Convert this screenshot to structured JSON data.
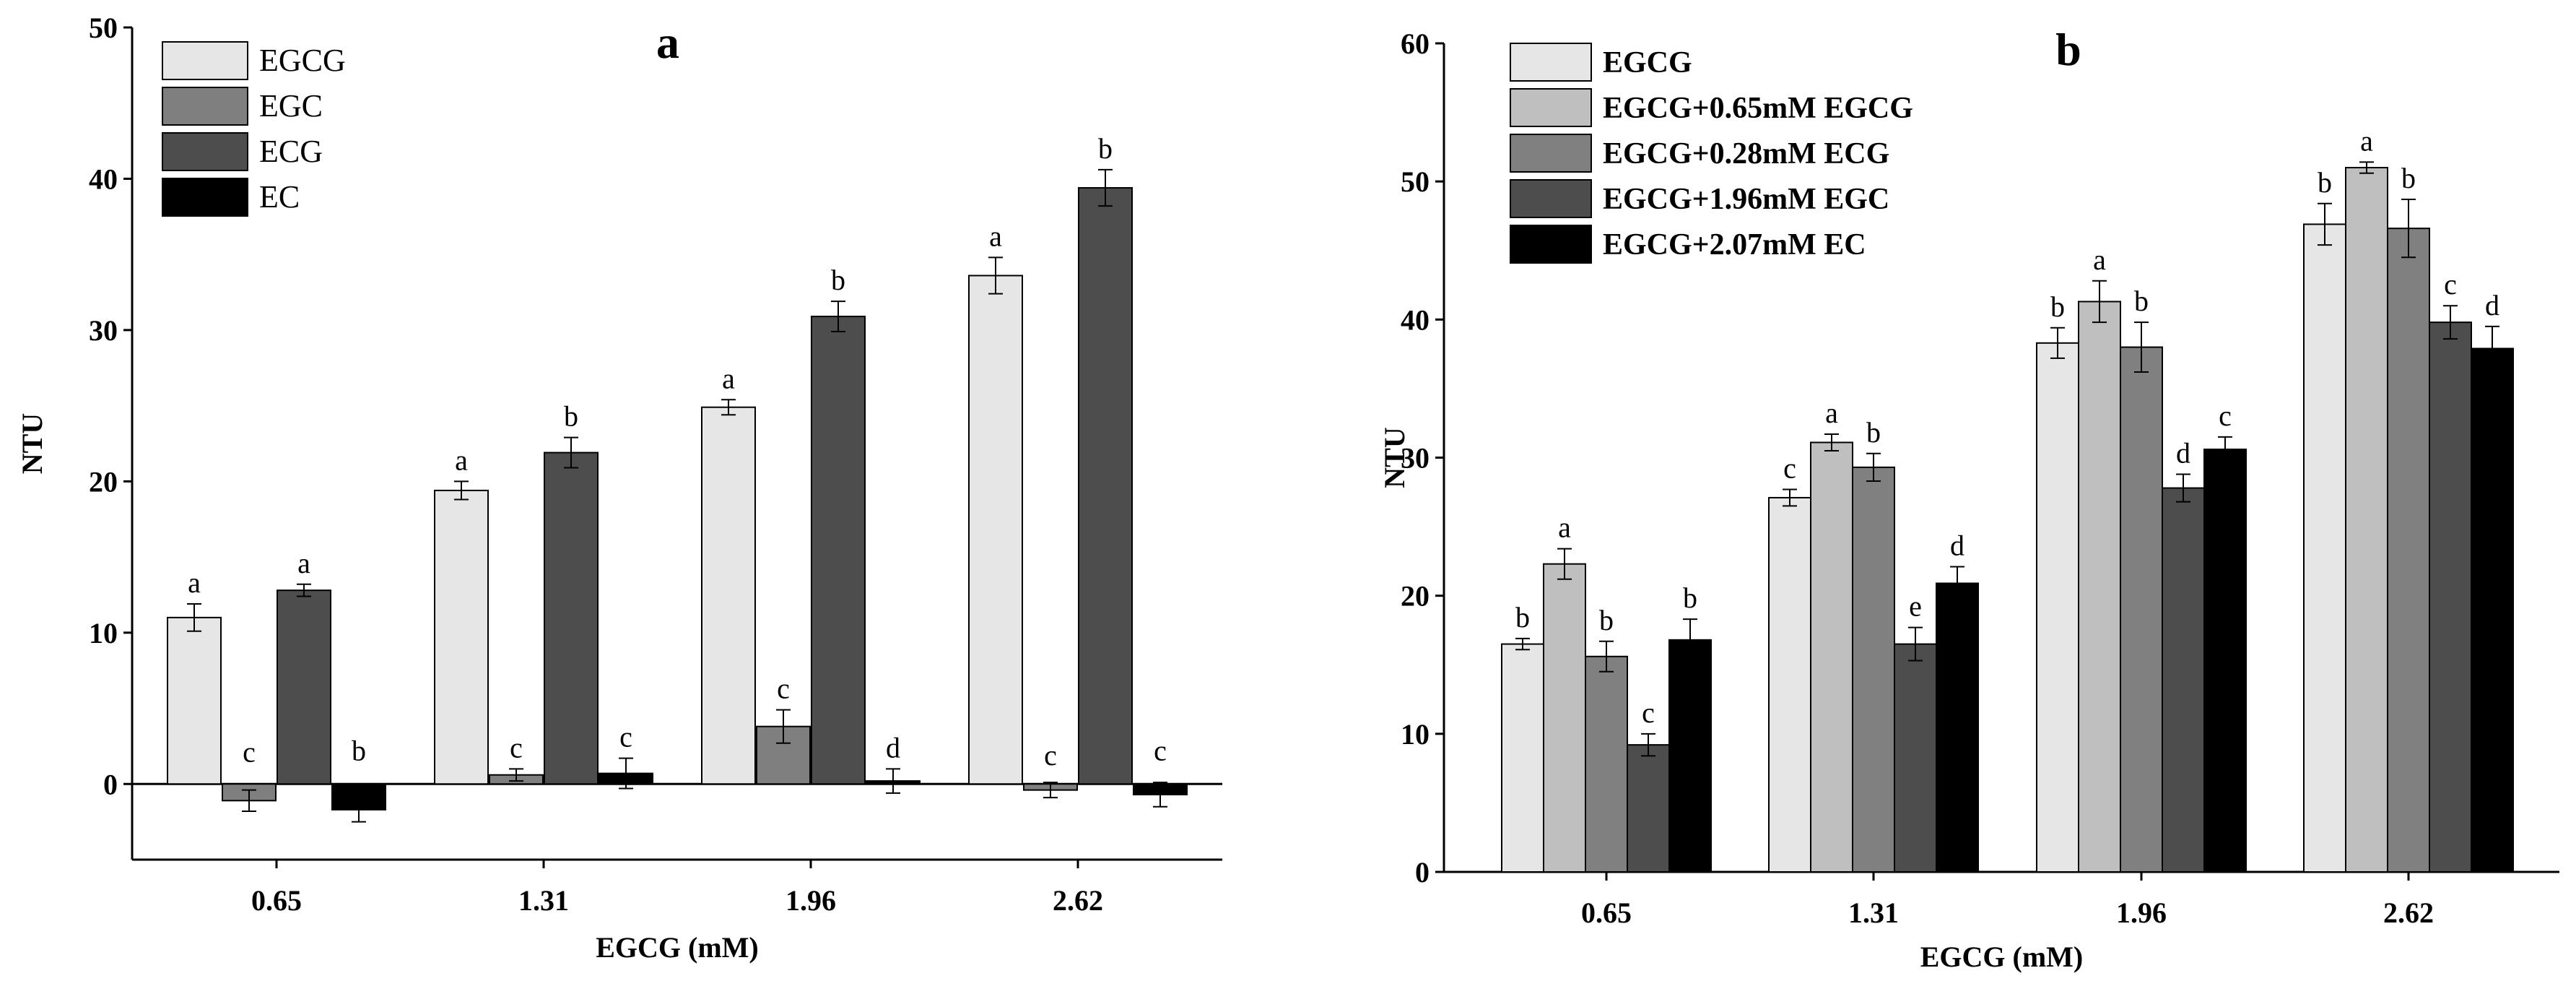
{
  "chart_data": [
    {
      "type": "bar",
      "title": "a",
      "xlabel": "EGCG (mM)",
      "ylabel": "NTU",
      "categories": [
        "0.65",
        "1.31",
        "1.96",
        "2.62"
      ],
      "ylim": [
        -5,
        50
      ],
      "yticks": [
        0,
        10,
        20,
        30,
        40,
        50
      ],
      "legend": "top-left",
      "series": [
        {
          "name": "EGCG",
          "color": "#e6e6e6",
          "values": [
            11.0,
            19.4,
            24.9,
            33.6
          ],
          "errors": [
            0.9,
            0.6,
            0.5,
            1.2
          ],
          "labels": [
            "a",
            "a",
            "a",
            "a"
          ]
        },
        {
          "name": "EGC",
          "color": "#7f7f7f",
          "values": [
            -1.1,
            0.6,
            3.8,
            -0.4
          ],
          "errors": [
            0.7,
            0.4,
            1.1,
            0.5
          ],
          "labels": [
            "c",
            "c",
            "c",
            "c"
          ]
        },
        {
          "name": "ECG",
          "color": "#4d4d4d",
          "values": [
            12.8,
            21.9,
            30.9,
            39.4
          ],
          "errors": [
            0.4,
            1.0,
            1.0,
            1.2
          ],
          "labels": [
            "a",
            "b",
            "b",
            "b"
          ]
        },
        {
          "name": "EC",
          "color": "#000000",
          "values": [
            -1.7,
            0.7,
            0.2,
            -0.7
          ],
          "errors": [
            0.8,
            1.0,
            0.8,
            0.8
          ],
          "labels": [
            "b",
            "c",
            "d",
            "c"
          ]
        }
      ]
    },
    {
      "type": "bar",
      "title": "b",
      "xlabel": "EGCG (mM)",
      "ylabel": "NTU",
      "categories": [
        "0.65",
        "1.31",
        "1.96",
        "2.62"
      ],
      "ylim": [
        0,
        60
      ],
      "yticks": [
        0,
        10,
        20,
        30,
        40,
        50,
        60
      ],
      "legend": "top-left",
      "series": [
        {
          "name": "EGCG",
          "color": "#e6e6e6",
          "values": [
            16.5,
            27.1,
            38.3,
            46.9
          ],
          "errors": [
            0.4,
            0.6,
            1.1,
            1.5
          ],
          "labels": [
            "b",
            "c",
            "b",
            "b"
          ]
        },
        {
          "name": "EGCG+0.65mM EGCG",
          "color": "#bfbfbf",
          "values": [
            22.3,
            31.1,
            41.3,
            51.0
          ],
          "errors": [
            1.1,
            0.6,
            1.5,
            0.4
          ],
          "labels": [
            "a",
            "a",
            "a",
            "a"
          ]
        },
        {
          "name": "EGCG+0.28mM ECG",
          "color": "#808080",
          "values": [
            15.6,
            29.3,
            38.0,
            46.6
          ],
          "errors": [
            1.1,
            1.0,
            1.8,
            2.1
          ],
          "labels": [
            "b",
            "b",
            "b",
            "b"
          ]
        },
        {
          "name": "EGCG+1.96mM EGC",
          "color": "#4d4d4d",
          "values": [
            9.2,
            16.5,
            27.8,
            39.8
          ],
          "errors": [
            0.8,
            1.2,
            1.0,
            1.2
          ],
          "labels": [
            "c",
            "e",
            "d",
            "c"
          ]
        },
        {
          "name": "EGCG+2.07mM EC",
          "color": "#000000",
          "values": [
            16.8,
            20.9,
            30.6,
            37.9
          ],
          "errors": [
            1.5,
            1.2,
            0.9,
            1.6
          ],
          "labels": [
            "b",
            "d",
            "c",
            "d"
          ]
        }
      ]
    }
  ]
}
